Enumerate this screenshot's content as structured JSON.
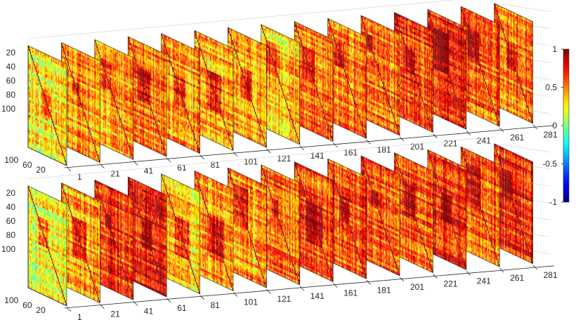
{
  "chart_data": {
    "type": "heatmap",
    "colormap": "jet",
    "colorbar": {
      "clim": [
        -1,
        1
      ],
      "ticks": [
        1,
        0.5,
        0,
        -0.5,
        -1
      ],
      "tick_labels": [
        "1",
        "0.5",
        "0",
        "-0.5",
        "-1"
      ]
    },
    "panels": [
      {
        "slice_axis_ticks": [
          "1",
          "21",
          "41",
          "61",
          "81",
          "101",
          "121",
          "141",
          "161",
          "181",
          "201",
          "221",
          "241",
          "261",
          "281"
        ],
        "matrix_row_ticks": [
          "20",
          "40",
          "60",
          "80",
          "100"
        ],
        "matrix_depth_ticks": [
          "20",
          "60",
          "100"
        ],
        "slice_mean_correlation": [
          0.25,
          0.45,
          0.4,
          0.55,
          0.45,
          0.45,
          0.45,
          0.35,
          0.55,
          0.55,
          0.55,
          0.65,
          0.75,
          0.55,
          0.55
        ]
      },
      {
        "slice_axis_ticks": [
          "1",
          "21",
          "41",
          "61",
          "81",
          "101",
          "121",
          "141",
          "161",
          "181",
          "201",
          "221",
          "241",
          "261",
          "281"
        ],
        "matrix_row_ticks": [
          "20",
          "40",
          "60",
          "80",
          "100"
        ],
        "matrix_depth_ticks": [
          "20",
          "60",
          "100"
        ],
        "slice_mean_correlation": [
          0.2,
          0.45,
          0.7,
          0.75,
          0.35,
          0.45,
          0.45,
          0.55,
          0.65,
          0.6,
          0.6,
          0.6,
          0.75,
          0.6,
          0.7
        ]
      }
    ]
  }
}
